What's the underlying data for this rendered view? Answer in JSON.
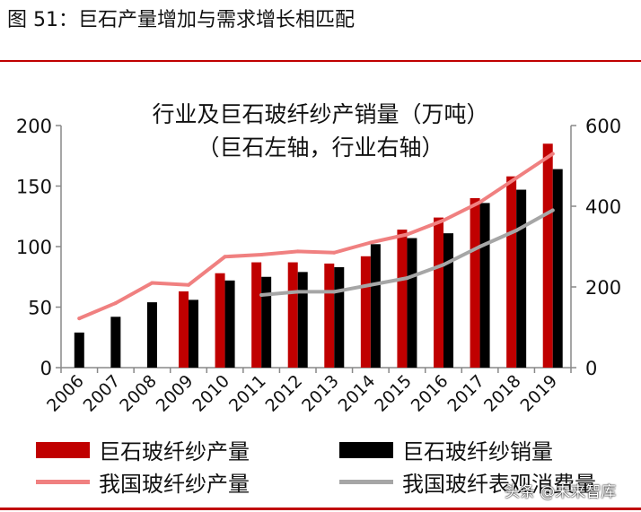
{
  "figure_caption": "图 51：巨石产量增加与需求增长相匹配",
  "watermark": "头条 @未来智库",
  "colors": {
    "rule": "#c00000"
  },
  "chart_data": {
    "type": "bar",
    "title": "行业及巨石玻纤纱产销量（万吨）",
    "subtitle": "（巨石左轴，行业右轴）",
    "categories": [
      "2006",
      "2007",
      "2008",
      "2009",
      "2010",
      "2011",
      "2012",
      "2013",
      "2014",
      "2015",
      "2016",
      "2017",
      "2018",
      "2019"
    ],
    "y_left": {
      "min": 0,
      "max": 200,
      "ticks": [
        0,
        50,
        100,
        150,
        200
      ]
    },
    "y_right": {
      "min": 0,
      "max": 600,
      "ticks": [
        0,
        200,
        400,
        600
      ]
    },
    "grid": false,
    "legend_position": "bottom",
    "series": [
      {
        "name": "巨石玻纤纱产量",
        "type": "bar",
        "axis": "left",
        "color": "#c00000",
        "values": [
          null,
          null,
          null,
          63,
          78,
          87,
          87,
          86,
          92,
          114,
          124,
          140,
          158,
          185
        ]
      },
      {
        "name": "巨石玻纤纱销量",
        "type": "bar",
        "axis": "left",
        "color": "#000000",
        "values": [
          29,
          42,
          54,
          56,
          72,
          75,
          79,
          83,
          102,
          107,
          111,
          136,
          147,
          164
        ]
      },
      {
        "name": "我国玻纤纱产量",
        "type": "line",
        "axis": "right",
        "color": "#f08080",
        "values": [
          122,
          160,
          210,
          205,
          275,
          280,
          288,
          285,
          310,
          330,
          365,
          410,
          470,
          530
        ]
      },
      {
        "name": "我国玻纤表观消费量",
        "type": "line",
        "axis": "right",
        "color": "#a6a6a6",
        "values": [
          null,
          null,
          null,
          null,
          null,
          180,
          188,
          188,
          205,
          222,
          255,
          300,
          340,
          390
        ]
      }
    ]
  }
}
